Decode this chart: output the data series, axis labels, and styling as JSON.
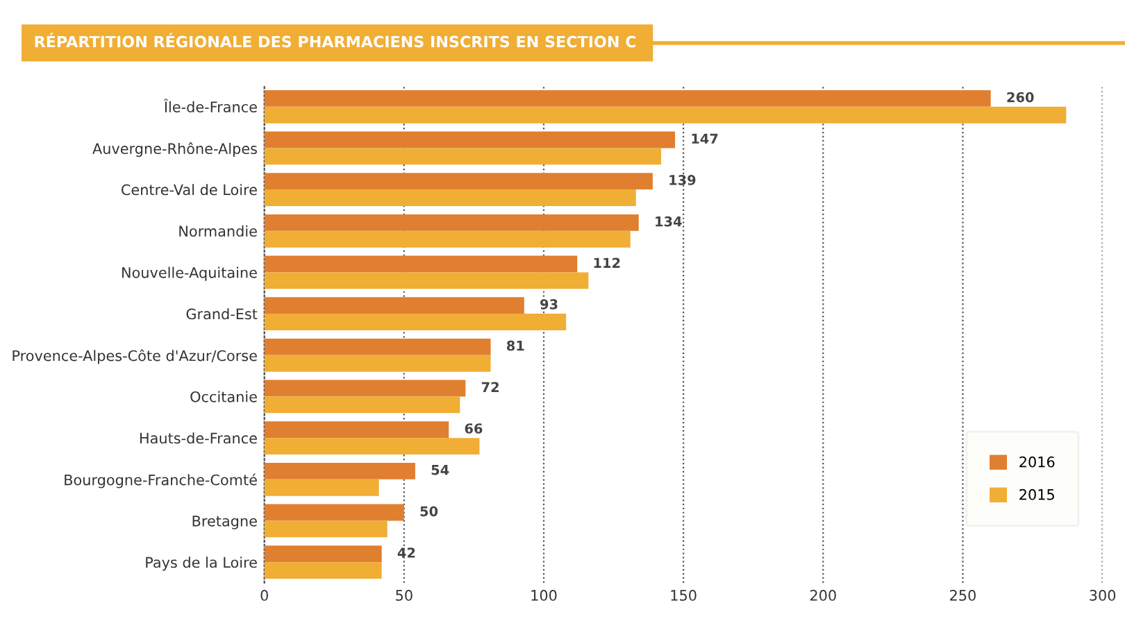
{
  "chart_data": {
    "type": "bar",
    "orientation": "horizontal",
    "title": "RÉPARTITION RÉGIONALE DES PHARMACIENS INSCRITS EN SECTION C",
    "categories": [
      "Île-de-France",
      "Auvergne-Rhône-Alpes",
      "Centre-Val de Loire",
      "Normandie",
      "Nouvelle-Aquitaine",
      "Grand-Est",
      "Provence-Alpes-Côte d'Azur/Corse",
      "Occitanie",
      "Hauts-de-France",
      "Bourgogne-Franche-Comté",
      "Bretagne",
      "Pays de la Loire"
    ],
    "series": [
      {
        "name": "2016",
        "color": "#e07f30",
        "values": [
          260,
          147,
          139,
          134,
          112,
          93,
          81,
          72,
          66,
          54,
          50,
          42
        ],
        "value_labels": [
          "260",
          "147",
          "139",
          "134",
          "112",
          "93",
          "81",
          "72",
          "66",
          "54",
          "50",
          "42"
        ]
      },
      {
        "name": "2015",
        "color": "#f0ae35",
        "values": [
          287,
          142,
          133,
          131,
          116,
          108,
          81,
          70,
          77,
          41,
          44,
          42
        ]
      }
    ],
    "xlim": [
      0,
      300
    ],
    "xticks": [
      0,
      50,
      100,
      150,
      200,
      250,
      300
    ],
    "grid": "x",
    "legend": "bottom right"
  }
}
